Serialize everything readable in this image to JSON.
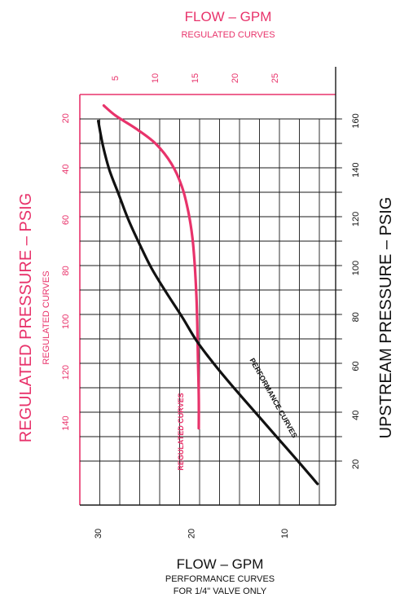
{
  "chart_data": {
    "type": "line",
    "title": "FLOW – GPM",
    "subtitle": "REGULATED CURVES",
    "bottom_title": "FLOW – GPM",
    "bottom_subtitle_1": "PERFORMANCE CURVES",
    "bottom_subtitle_2": "FOR 1/4\" VALVE ONLY",
    "left_label": "REGULATED PRESSURE – PSIG",
    "left_sublabel": "REGULATED CURVES",
    "right_label": "UPSTREAM PRESSURE – PSIG",
    "grid": true,
    "colors": {
      "regulated": "#e8336b",
      "performance": "#111111",
      "grid": "#1a1a1a"
    },
    "axes": {
      "regulated_flow": {
        "ticks": [
          "5",
          "10",
          "15",
          "20",
          "25"
        ],
        "values": [
          5,
          10,
          15,
          20,
          25
        ],
        "range": [
          0,
          30
        ]
      },
      "regulated_pressure": {
        "ticks": [
          "20",
          "40",
          "60",
          "80",
          "100",
          "120",
          "140"
        ],
        "values": [
          20,
          40,
          60,
          80,
          100,
          120,
          140
        ],
        "range": [
          8,
          168
        ]
      },
      "performance_flow": {
        "ticks": [
          "30",
          "20",
          "10"
        ],
        "values": [
          30,
          20,
          10
        ],
        "range": [
          0,
          31
        ]
      },
      "upstream_pressure": {
        "ticks": [
          "20",
          "40",
          "60",
          "80",
          "100",
          "120",
          "140",
          "160"
        ],
        "values": [
          20,
          40,
          60,
          80,
          100,
          120,
          140,
          160
        ],
        "range": [
          8,
          168
        ]
      }
    },
    "series": [
      {
        "name": "REGULATED CURVES",
        "x_axis": "regulated_flow",
        "y_axis": "regulated_pressure",
        "points": [
          [
            3,
            15
          ],
          [
            4.5,
            19
          ],
          [
            7,
            24
          ],
          [
            9.5,
            30
          ],
          [
            11.5,
            38
          ],
          [
            12.8,
            47
          ],
          [
            13.6,
            57
          ],
          [
            14.1,
            67
          ],
          [
            14.4,
            78
          ],
          [
            14.6,
            90
          ],
          [
            14.7,
            100
          ],
          [
            14.8,
            115
          ],
          [
            14.9,
            130
          ],
          [
            14.9,
            142
          ]
        ]
      },
      {
        "name": "PERFORMANCE CURVES",
        "x_axis": "performance_flow",
        "y_axis": "upstream_pressure",
        "points": [
          [
            28.2,
            160
          ],
          [
            27.7,
            150
          ],
          [
            27,
            140
          ],
          [
            26,
            130
          ],
          [
            25,
            120
          ],
          [
            23.8,
            110
          ],
          [
            22.5,
            100
          ],
          [
            20.9,
            90
          ],
          [
            19.2,
            80
          ],
          [
            17.6,
            70
          ],
          [
            15.6,
            60
          ],
          [
            13.4,
            50
          ],
          [
            11.1,
            40
          ],
          [
            8.8,
            30
          ],
          [
            6.5,
            20
          ],
          [
            4.7,
            12
          ]
        ]
      }
    ]
  }
}
